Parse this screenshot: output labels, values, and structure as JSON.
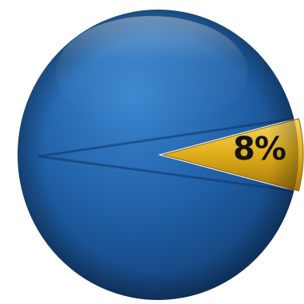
{
  "chart_data": {
    "type": "pie",
    "slices": [
      {
        "value": 92,
        "color": "#1f5fa6"
      },
      {
        "value": 8,
        "color": "#e2b21c"
      }
    ],
    "data_labels": [
      "8%"
    ]
  }
}
